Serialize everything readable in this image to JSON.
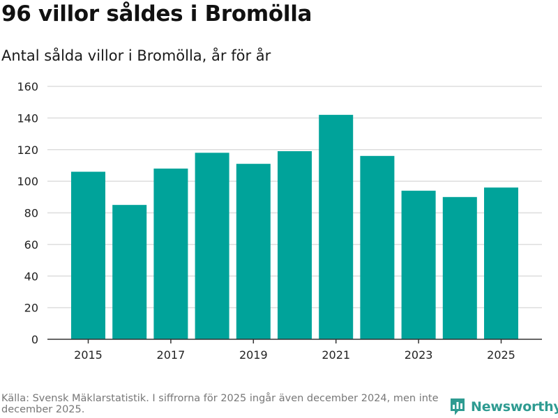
{
  "header": {
    "title": "96 villor såldes i Bromölla",
    "subtitle": "Antal sålda villor i Bromölla, år för år"
  },
  "footer": {
    "source": "Källa: Svensk Mäklarstatistik. I siffrorna för 2025 ingår även december 2024, men inte december 2025.",
    "brand": "Newsworthy",
    "logo_icon": "newsworthy-bar-chart-icon"
  },
  "colors": {
    "bar": "#00a39a",
    "grid": "#dddddd",
    "axis": "#333333",
    "brand": "#2e9b91"
  },
  "chart_data": {
    "type": "bar",
    "title": "96 villor såldes i Bromölla",
    "subtitle": "Antal sålda villor i Bromölla, år för år",
    "categories": [
      "2015",
      "2016",
      "2017",
      "2018",
      "2019",
      "2020",
      "2021",
      "2022",
      "2023",
      "2024",
      "2025"
    ],
    "values": [
      106,
      85,
      108,
      118,
      111,
      119,
      142,
      116,
      94,
      90,
      96
    ],
    "x_tick_labels": [
      "2015",
      "2017",
      "2019",
      "2021",
      "2023",
      "2025"
    ],
    "y_ticks": [
      0,
      20,
      40,
      60,
      80,
      100,
      120,
      140,
      160
    ],
    "ylim": [
      0,
      160
    ],
    "xlabel": "",
    "ylabel": "",
    "grid": true,
    "legend": "none"
  }
}
